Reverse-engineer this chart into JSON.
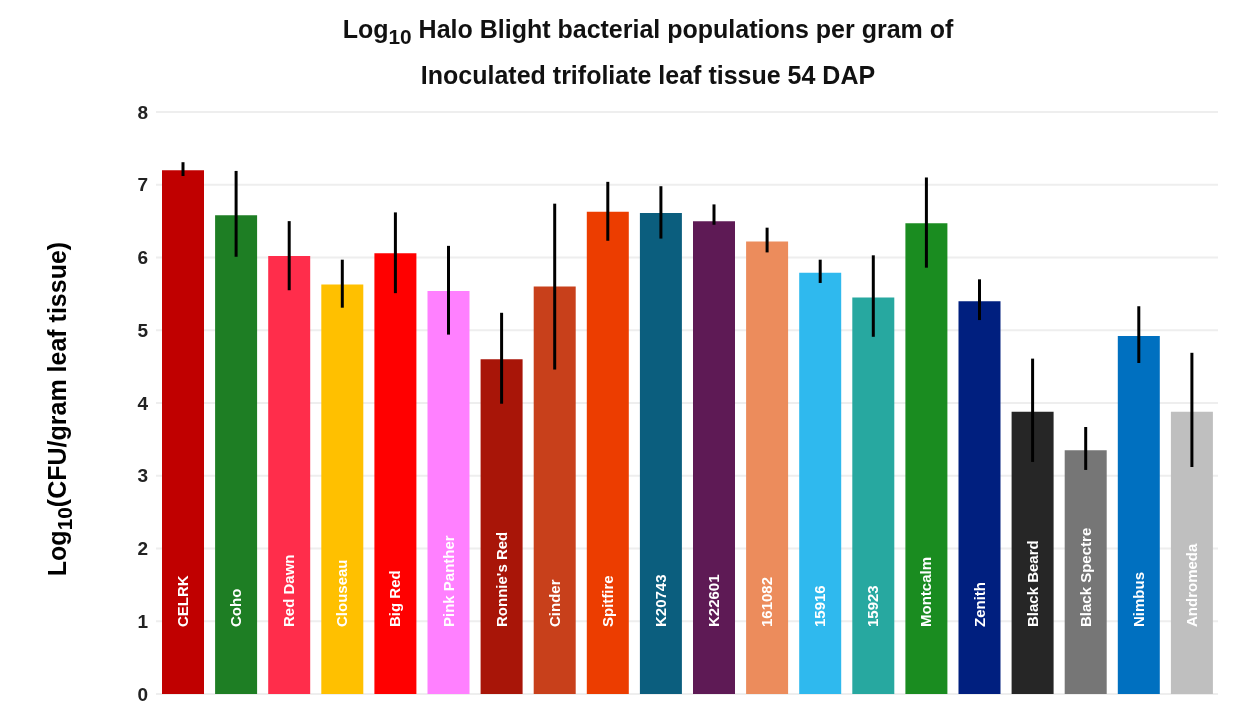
{
  "chart_data": {
    "type": "bar",
    "title": "Log$_{10}$ Halo Blight bacterial populations per gram of Inoculated trifoliate leaf tissue 54 DAP",
    "ylabel": "Log$_{10}$(CFU/gram leaf tissue)",
    "categories": [
      "CELRK",
      "Coho",
      "Red Dawn",
      "Clouseau",
      "Big Red",
      "Pink Panther",
      "Ronnie's Red",
      "Cinder",
      "Spitfire",
      "K20743",
      "K22601",
      "161082",
      "15916",
      "15923",
      "Montcalm",
      "Zenith",
      "Black Beard",
      "Black Spectre",
      "Nimbus",
      "Andromeda"
    ],
    "values": [
      7.2,
      6.58,
      6.02,
      5.63,
      6.06,
      5.54,
      4.6,
      5.6,
      6.63,
      6.61,
      6.5,
      6.22,
      5.79,
      5.45,
      6.47,
      5.4,
      3.88,
      3.35,
      4.92,
      3.88
    ],
    "errors": [
      [
        7.12,
        7.31
      ],
      [
        6.01,
        7.19
      ],
      [
        5.55,
        6.5
      ],
      [
        5.31,
        5.97
      ],
      [
        5.51,
        6.62
      ],
      [
        4.94,
        6.16
      ],
      [
        3.99,
        5.24
      ],
      [
        4.46,
        6.74
      ],
      [
        6.23,
        7.04
      ],
      [
        6.26,
        6.98
      ],
      [
        6.45,
        6.73
      ],
      [
        6.07,
        6.41
      ],
      [
        5.65,
        5.97
      ],
      [
        4.91,
        6.03
      ],
      [
        5.86,
        7.1
      ],
      [
        5.14,
        5.7
      ],
      [
        3.19,
        4.61
      ],
      [
        3.08,
        3.67
      ],
      [
        4.55,
        5.33
      ],
      [
        3.12,
        4.69
      ]
    ],
    "colors": [
      "#c00000",
      "#1e7e24",
      "#ff2d4b",
      "#ffc000",
      "#ff0000",
      "#ff80ff",
      "#a81508",
      "#c8401b",
      "#ec3d00",
      "#0b5e7e",
      "#5e1a55",
      "#ec8c5c",
      "#2fb9ee",
      "#27a8a0",
      "#1a8c20",
      "#001f7f",
      "#262626",
      "#767676",
      "#0070c0",
      "#bfbfbf"
    ],
    "ylim": [
      0,
      8
    ],
    "yticks": [
      0,
      1,
      2,
      3,
      4,
      5,
      6,
      7,
      8
    ],
    "grid": "y"
  }
}
